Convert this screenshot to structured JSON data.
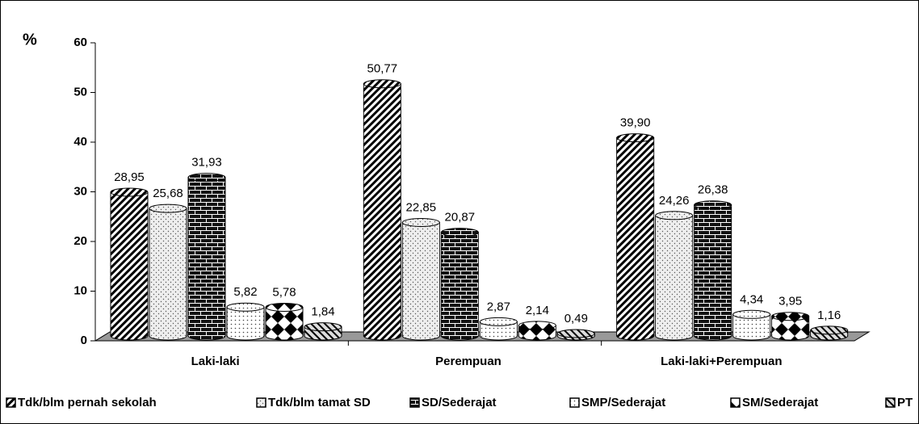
{
  "chart_data": {
    "type": "bar",
    "y_label": "%",
    "categories": [
      "Laki-laki",
      "Perempuan",
      "Laki-laki+Perempuan"
    ],
    "series": [
      {
        "name": "Tdk/blm pernah sekolah",
        "values": [
          28.95,
          50.77,
          39.9
        ],
        "value_labels": [
          "28,95",
          "50,77",
          "39,90"
        ]
      },
      {
        "name": "Tdk/blm tamat SD",
        "values": [
          25.68,
          22.85,
          24.26
        ],
        "value_labels": [
          "25,68",
          "22,85",
          "24,26"
        ]
      },
      {
        "name": "SD/Sederajat",
        "values": [
          31.93,
          20.87,
          26.38
        ],
        "value_labels": [
          "31,93",
          "20,87",
          "26,38"
        ]
      },
      {
        "name": "SMP/Sederajat",
        "values": [
          5.82,
          2.87,
          4.34
        ],
        "value_labels": [
          "5,82",
          "2,87",
          "4,34"
        ]
      },
      {
        "name": "SM/Sederajat",
        "values": [
          5.78,
          2.14,
          3.95
        ],
        "value_labels": [
          "5,78",
          "2,14",
          "3,95"
        ]
      },
      {
        "name": "PT",
        "values": [
          1.84,
          0.49,
          1.16
        ],
        "value_labels": [
          "1,84",
          "0,49",
          "1,16"
        ]
      }
    ],
    "ylim": [
      0,
      60
    ],
    "yticks": [
      0,
      10,
      20,
      30,
      40,
      50,
      60
    ],
    "legend": "bottom"
  }
}
